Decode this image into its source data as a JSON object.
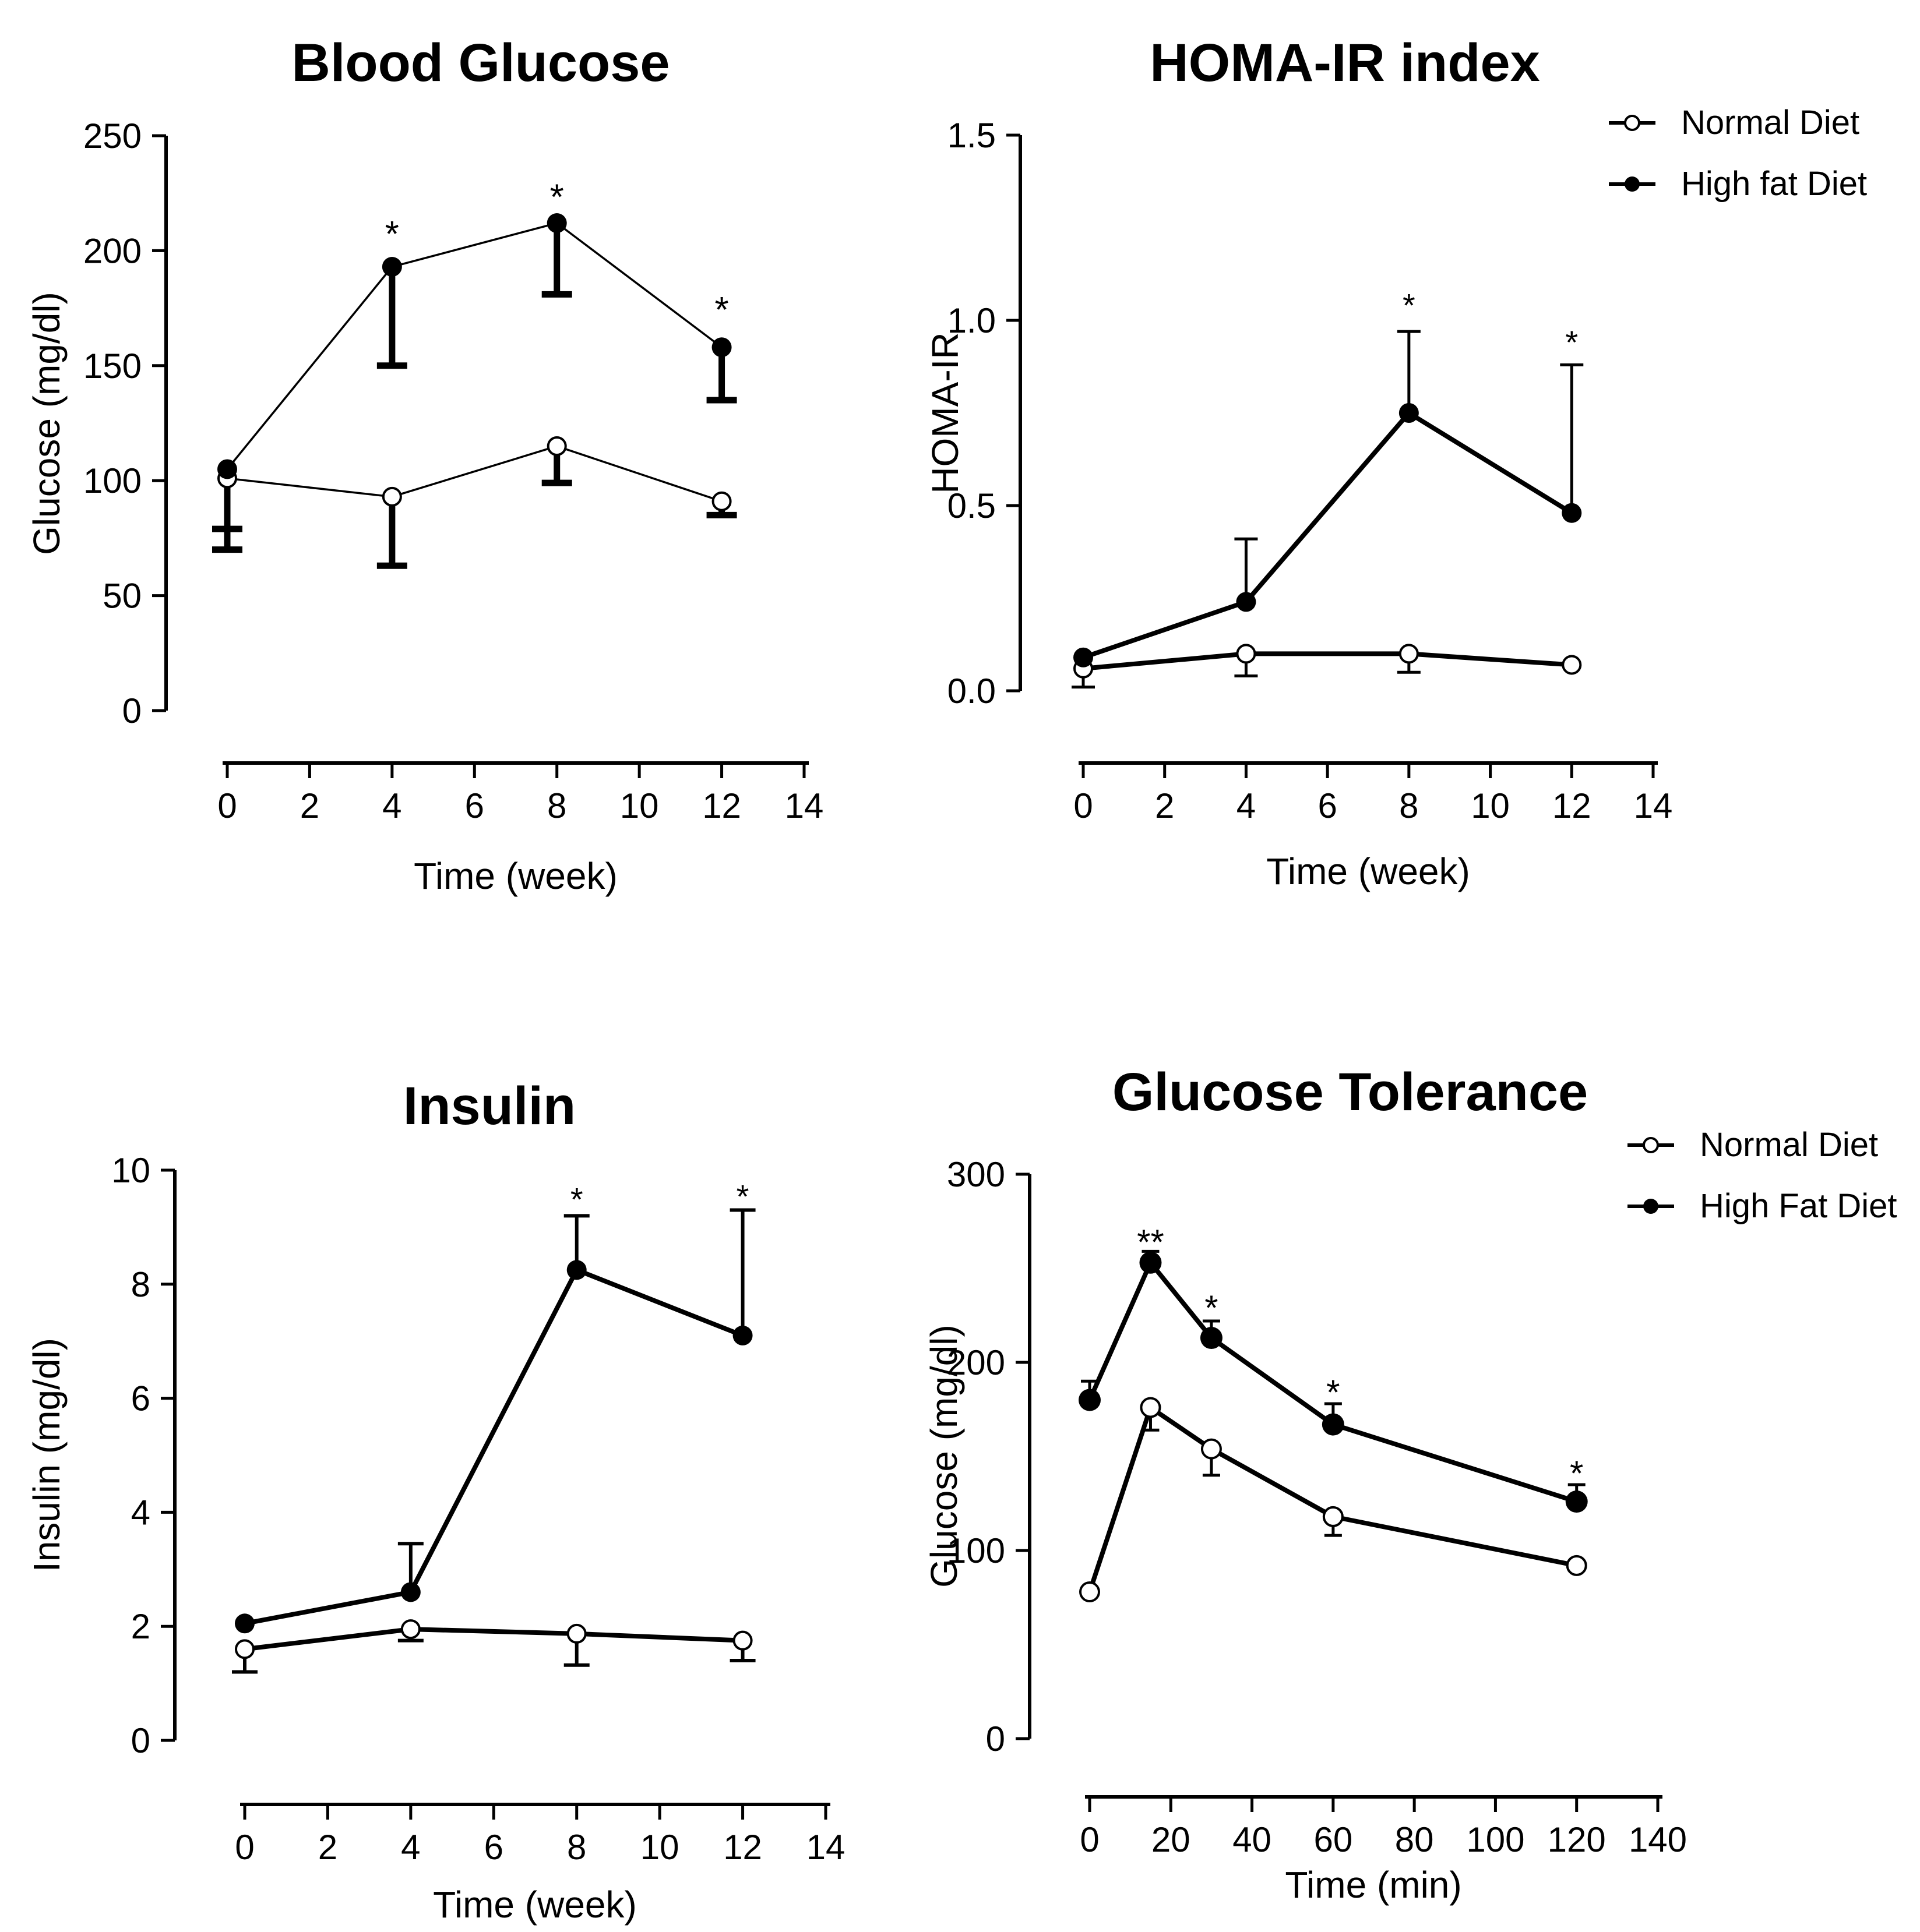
{
  "figure": {
    "background": "#ffffff",
    "ink": "#000000",
    "description": "Four-panel metabolic study figure comparing Normal Diet vs High fat Diet"
  },
  "chart_data": [
    {
      "id": "blood-glucose",
      "type": "line",
      "title": "Blood Glucose",
      "xlabel": "Time (week)",
      "ylabel": "Glucose (mg/dl)",
      "xlim": [
        0,
        14
      ],
      "ylim": [
        0,
        250
      ],
      "grid": false,
      "xticks": {
        "values": [
          0,
          2,
          4,
          6,
          8,
          10,
          12,
          14
        ],
        "labels": [
          "0",
          "2",
          "4",
          "6",
          "8",
          "10",
          "12",
          "14"
        ]
      },
      "yticks": {
        "values": [
          0,
          50,
          100,
          150,
          200,
          250
        ],
        "labels": [
          "0",
          "50",
          "100",
          "150",
          "200",
          "250"
        ]
      },
      "series": [
        {
          "name": "Normal Diet",
          "marker": "open",
          "x": [
            0,
            4,
            8,
            12
          ],
          "y": [
            101,
            93,
            115,
            91
          ],
          "err_down": [
            31,
            30,
            16,
            6
          ],
          "err_up": [
            0,
            0,
            0,
            0
          ]
        },
        {
          "name": "High fat Diet",
          "marker": "filled",
          "x": [
            0,
            4,
            8,
            12
          ],
          "y": [
            105,
            193,
            212,
            158
          ],
          "err_down": [
            26,
            43,
            31,
            23
          ],
          "err_up": [
            0,
            0,
            0,
            0
          ]
        }
      ],
      "annotations": [
        {
          "x": 4,
          "y": 209,
          "text": "*"
        },
        {
          "x": 8,
          "y": 225,
          "text": "*"
        },
        {
          "x": 12,
          "y": 176,
          "text": "*"
        }
      ],
      "legend": null,
      "layout": {
        "axis_x": 285,
        "y_top": 233,
        "y_bottom": 1220,
        "x_left": 390,
        "x_right": 1380,
        "xaxis_y": 1310,
        "xaxis_pad": 8,
        "ytick_len": 24,
        "xtick_len": 26,
        "axis_w": 6,
        "tick_w": 5,
        "tick_font": 60,
        "line_w": 3.5,
        "err_w": 11,
        "cap_half": 26,
        "r_open": 15,
        "r_filled": 17,
        "marker_stroke": 4,
        "star_font": 62
      }
    },
    {
      "id": "homa-ir",
      "type": "line",
      "title": "HOMA-IR index",
      "xlabel": "Time (week)",
      "ylabel": "HOMA-IR",
      "xlim": [
        0,
        14
      ],
      "ylim": [
        0,
        1.5
      ],
      "grid": false,
      "xticks": {
        "values": [
          0,
          2,
          4,
          6,
          8,
          10,
          12,
          14
        ],
        "labels": [
          "0",
          "2",
          "4",
          "6",
          "8",
          "10",
          "12",
          "14"
        ]
      },
      "yticks": {
        "values": [
          0,
          0.5,
          1.0,
          1.5
        ],
        "labels": [
          "0.0",
          "0.5",
          "1.0",
          "1.5"
        ]
      },
      "series": [
        {
          "name": "Normal Diet",
          "marker": "open",
          "x": [
            0,
            4,
            8,
            12
          ],
          "y": [
            0.06,
            0.1,
            0.1,
            0.07
          ],
          "err_down": [
            0.05,
            0.06,
            0.05,
            0
          ],
          "err_up": [
            0,
            0,
            0,
            0
          ]
        },
        {
          "name": "High fat Diet",
          "marker": "filled",
          "x": [
            0,
            4,
            8,
            12
          ],
          "y": [
            0.09,
            0.24,
            0.75,
            0.48
          ],
          "err_down": [
            0,
            0,
            0,
            0
          ],
          "err_up": [
            0,
            0.17,
            0.22,
            0.4
          ]
        }
      ],
      "annotations": [
        {
          "x": 8,
          "y": 1.05,
          "text": "*"
        },
        {
          "x": 12,
          "y": 0.95,
          "text": "*"
        }
      ],
      "legend": [
        {
          "marker": "open",
          "label": "Normal Diet"
        },
        {
          "marker": "filled",
          "label": "High fat Diet"
        }
      ],
      "layout": {
        "axis_x": 191,
        "y_top": 232,
        "y_bottom": 1186,
        "x_left": 299,
        "x_right": 1277,
        "xaxis_y": 1310,
        "xaxis_pad": 8,
        "ytick_len": 24,
        "xtick_len": 26,
        "axis_w": 6,
        "tick_w": 5,
        "tick_font": 60,
        "line_w": 8,
        "err_w": 5,
        "cap_half": 20,
        "r_open": 15,
        "r_filled": 17,
        "marker_stroke": 4,
        "star_font": 56
      }
    },
    {
      "id": "insulin",
      "type": "line",
      "title": "Insulin",
      "xlabel": "Time (week)",
      "ylabel": "Insulin (mg/dl)",
      "xlim": [
        0,
        14
      ],
      "ylim": [
        0,
        10
      ],
      "grid": false,
      "xticks": {
        "values": [
          0,
          2,
          4,
          6,
          8,
          10,
          12,
          14
        ],
        "labels": [
          "0",
          "2",
          "4",
          "6",
          "8",
          "10",
          "12",
          "14"
        ]
      },
      "yticks": {
        "values": [
          0,
          2,
          4,
          6,
          8,
          10
        ],
        "labels": [
          "0",
          "2",
          "4",
          "6",
          "8",
          "10"
        ]
      },
      "series": [
        {
          "name": "Normal Diet",
          "marker": "open",
          "x": [
            0,
            4,
            8,
            12
          ],
          "y": [
            1.6,
            1.95,
            1.87,
            1.75
          ],
          "err_down": [
            0.4,
            0.2,
            0.55,
            0.35
          ],
          "err_up": [
            0,
            0,
            0,
            0
          ]
        },
        {
          "name": "High fat Diet",
          "marker": "filled",
          "x": [
            0,
            4,
            8,
            12
          ],
          "y": [
            2.05,
            2.6,
            8.25,
            7.1
          ],
          "err_down": [
            0,
            0,
            0,
            0
          ],
          "err_up": [
            0,
            0.85,
            0.95,
            2.2
          ]
        }
      ],
      "annotations": [
        {
          "x": 8,
          "y": 9.55,
          "text": "*"
        },
        {
          "x": 12,
          "y": 9.6,
          "text": "*"
        }
      ],
      "legend": null,
      "layout": {
        "axis_x": 300,
        "y_top": 259,
        "y_bottom": 1238,
        "x_left": 420,
        "x_right": 1417,
        "xaxis_y": 1348,
        "xaxis_pad": 8,
        "ytick_len": 24,
        "xtick_len": 26,
        "axis_w": 6,
        "tick_w": 5,
        "tick_font": 60,
        "line_w": 8,
        "err_w": 6,
        "cap_half": 22,
        "r_open": 15,
        "r_filled": 17,
        "marker_stroke": 4,
        "star_font": 56
      }
    },
    {
      "id": "glucose-tolerance",
      "type": "line",
      "title": "Glucose Tolerance",
      "xlabel": "Time (min)",
      "ylabel": "Glucose  (mg/dl)",
      "xlim": [
        0,
        140
      ],
      "ylim": [
        0,
        300
      ],
      "grid": false,
      "xticks": {
        "values": [
          0,
          20,
          40,
          60,
          80,
          100,
          120,
          140
        ],
        "labels": [
          "0",
          "20",
          "40",
          "60",
          "80",
          "100",
          "120",
          "140"
        ]
      },
      "yticks": {
        "values": [
          0,
          100,
          200,
          300
        ],
        "labels": [
          "0",
          "100",
          "200",
          "300"
        ]
      },
      "series": [
        {
          "name": "Normal Diet",
          "marker": "open",
          "x": [
            0,
            15,
            30,
            60,
            120
          ],
          "y": [
            78,
            176,
            154,
            118,
            92
          ],
          "err_down": [
            0,
            12,
            14,
            10,
            0
          ],
          "err_up": [
            0,
            0,
            0,
            0,
            0
          ]
        },
        {
          "name": "High Fat Diet",
          "marker": "filled",
          "x": [
            0,
            15,
            30,
            60,
            120
          ],
          "y": [
            180,
            253,
            213,
            167,
            126
          ],
          "err_down": [
            0,
            0,
            0,
            0,
            0
          ],
          "err_up": [
            10,
            6,
            9,
            11,
            9
          ]
        }
      ],
      "annotations": [
        {
          "x": 15,
          "y": 266,
          "text": "**"
        },
        {
          "x": 30,
          "y": 231,
          "text": "*"
        },
        {
          "x": 60,
          "y": 186,
          "text": "*"
        },
        {
          "x": 120,
          "y": 143,
          "text": "*"
        }
      ],
      "legend": [
        {
          "marker": "open",
          "label": "Normal Diet"
        },
        {
          "marker": "filled",
          "label": "High Fat Diet"
        }
      ],
      "layout": {
        "axis_x": 207,
        "y_top": 266,
        "y_bottom": 1235,
        "x_left": 310,
        "x_right": 1285,
        "xaxis_y": 1335,
        "xaxis_pad": 8,
        "ytick_len": 24,
        "xtick_len": 26,
        "axis_w": 6,
        "tick_w": 5,
        "tick_font": 60,
        "line_w": 8,
        "err_w": 5,
        "cap_half": 15,
        "r_open": 16,
        "r_filled": 19,
        "marker_stroke": 4,
        "star_font": 60
      }
    }
  ]
}
